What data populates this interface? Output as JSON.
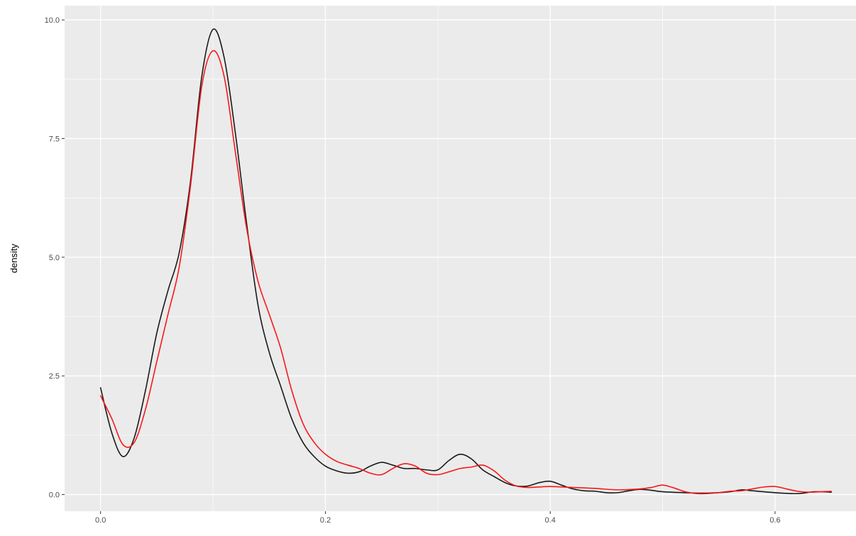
{
  "chart_data": {
    "type": "line",
    "title": "",
    "xlabel": "",
    "ylabel": "density",
    "xlim": [
      -0.032,
      0.672
    ],
    "ylim": [
      -0.35,
      10.3
    ],
    "x_ticks": [
      0.0,
      0.2,
      0.4,
      0.6
    ],
    "x_tick_labels": [
      "0.0",
      "0.2",
      "0.4",
      "0.6"
    ],
    "y_ticks": [
      0.0,
      2.5,
      5.0,
      7.5,
      10.0
    ],
    "y_tick_labels": [
      "0.0",
      "2.5",
      "5.0",
      "7.5",
      "10.0"
    ],
    "grid": true,
    "panel_background": "#EBEBEB",
    "series": [
      {
        "color": "#1A1A1A",
        "points": [
          [
            0.0,
            2.25
          ],
          [
            0.01,
            1.3
          ],
          [
            0.02,
            0.8
          ],
          [
            0.03,
            1.2
          ],
          [
            0.04,
            2.2
          ],
          [
            0.05,
            3.4
          ],
          [
            0.06,
            4.3
          ],
          [
            0.07,
            5.1
          ],
          [
            0.08,
            6.6
          ],
          [
            0.09,
            8.8
          ],
          [
            0.1,
            9.8
          ],
          [
            0.11,
            9.2
          ],
          [
            0.12,
            7.6
          ],
          [
            0.13,
            5.7
          ],
          [
            0.14,
            4.0
          ],
          [
            0.15,
            3.0
          ],
          [
            0.16,
            2.3
          ],
          [
            0.17,
            1.6
          ],
          [
            0.18,
            1.1
          ],
          [
            0.19,
            0.8
          ],
          [
            0.2,
            0.6
          ],
          [
            0.21,
            0.5
          ],
          [
            0.22,
            0.45
          ],
          [
            0.23,
            0.48
          ],
          [
            0.24,
            0.6
          ],
          [
            0.25,
            0.68
          ],
          [
            0.26,
            0.62
          ],
          [
            0.27,
            0.55
          ],
          [
            0.28,
            0.55
          ],
          [
            0.29,
            0.52
          ],
          [
            0.3,
            0.52
          ],
          [
            0.31,
            0.72
          ],
          [
            0.32,
            0.85
          ],
          [
            0.33,
            0.75
          ],
          [
            0.34,
            0.52
          ],
          [
            0.35,
            0.38
          ],
          [
            0.36,
            0.25
          ],
          [
            0.37,
            0.18
          ],
          [
            0.38,
            0.18
          ],
          [
            0.39,
            0.25
          ],
          [
            0.4,
            0.28
          ],
          [
            0.41,
            0.2
          ],
          [
            0.42,
            0.12
          ],
          [
            0.43,
            0.08
          ],
          [
            0.44,
            0.07
          ],
          [
            0.45,
            0.04
          ],
          [
            0.46,
            0.04
          ],
          [
            0.47,
            0.08
          ],
          [
            0.48,
            0.11
          ],
          [
            0.49,
            0.09
          ],
          [
            0.5,
            0.06
          ],
          [
            0.52,
            0.04
          ],
          [
            0.54,
            0.03
          ],
          [
            0.56,
            0.06
          ],
          [
            0.57,
            0.1
          ],
          [
            0.58,
            0.08
          ],
          [
            0.6,
            0.04
          ],
          [
            0.62,
            0.02
          ],
          [
            0.635,
            0.06
          ],
          [
            0.65,
            0.05
          ]
        ]
      },
      {
        "color": "#F8171B",
        "points": [
          [
            0.0,
            2.08
          ],
          [
            0.01,
            1.6
          ],
          [
            0.02,
            1.05
          ],
          [
            0.03,
            1.1
          ],
          [
            0.04,
            1.8
          ],
          [
            0.05,
            2.8
          ],
          [
            0.06,
            3.8
          ],
          [
            0.07,
            4.8
          ],
          [
            0.08,
            6.5
          ],
          [
            0.09,
            8.6
          ],
          [
            0.1,
            9.35
          ],
          [
            0.11,
            8.8
          ],
          [
            0.12,
            7.2
          ],
          [
            0.13,
            5.6
          ],
          [
            0.14,
            4.5
          ],
          [
            0.15,
            3.8
          ],
          [
            0.16,
            3.1
          ],
          [
            0.17,
            2.2
          ],
          [
            0.18,
            1.5
          ],
          [
            0.19,
            1.1
          ],
          [
            0.2,
            0.85
          ],
          [
            0.21,
            0.7
          ],
          [
            0.22,
            0.62
          ],
          [
            0.23,
            0.55
          ],
          [
            0.24,
            0.45
          ],
          [
            0.25,
            0.42
          ],
          [
            0.26,
            0.55
          ],
          [
            0.27,
            0.65
          ],
          [
            0.28,
            0.6
          ],
          [
            0.29,
            0.45
          ],
          [
            0.3,
            0.42
          ],
          [
            0.31,
            0.48
          ],
          [
            0.32,
            0.55
          ],
          [
            0.33,
            0.58
          ],
          [
            0.34,
            0.62
          ],
          [
            0.35,
            0.5
          ],
          [
            0.36,
            0.3
          ],
          [
            0.37,
            0.18
          ],
          [
            0.38,
            0.15
          ],
          [
            0.39,
            0.16
          ],
          [
            0.4,
            0.17
          ],
          [
            0.42,
            0.15
          ],
          [
            0.44,
            0.13
          ],
          [
            0.46,
            0.1
          ],
          [
            0.48,
            0.12
          ],
          [
            0.49,
            0.15
          ],
          [
            0.5,
            0.2
          ],
          [
            0.51,
            0.14
          ],
          [
            0.52,
            0.06
          ],
          [
            0.53,
            0.02
          ],
          [
            0.54,
            0.02
          ],
          [
            0.55,
            0.04
          ],
          [
            0.56,
            0.07
          ],
          [
            0.57,
            0.08
          ],
          [
            0.58,
            0.12
          ],
          [
            0.59,
            0.16
          ],
          [
            0.6,
            0.17
          ],
          [
            0.61,
            0.12
          ],
          [
            0.62,
            0.07
          ],
          [
            0.63,
            0.05
          ],
          [
            0.65,
            0.07
          ]
        ]
      }
    ]
  }
}
